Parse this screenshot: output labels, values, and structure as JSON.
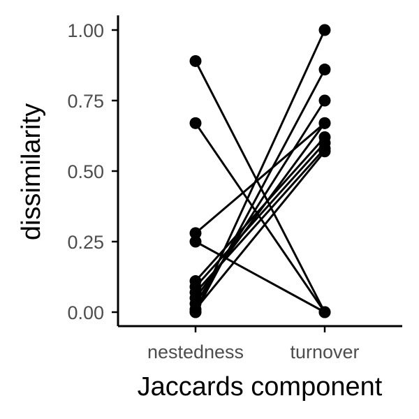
{
  "chart_data": {
    "type": "line",
    "xlabel": "Jaccards component",
    "ylabel": "dissimilarity",
    "categories": [
      "nestedness",
      "turnover"
    ],
    "ylim": [
      -0.05,
      1.05
    ],
    "yticks": [
      "0.00",
      "0.25",
      "0.50",
      "0.75",
      "1.00"
    ],
    "ytick_values": [
      0,
      0.25,
      0.5,
      0.75,
      1.0
    ],
    "grid": false,
    "legend": "none",
    "series": [
      {
        "values": [
          0.89,
          0.0
        ]
      },
      {
        "values": [
          0.67,
          0.0
        ]
      },
      {
        "values": [
          0.28,
          0.67
        ]
      },
      {
        "values": [
          0.25,
          0.0
        ]
      },
      {
        "values": [
          0.11,
          0.62
        ]
      },
      {
        "values": [
          0.09,
          0.6
        ]
      },
      {
        "values": [
          0.07,
          0.58
        ]
      },
      {
        "values": [
          0.05,
          0.67
        ]
      },
      {
        "values": [
          0.03,
          0.75
        ]
      },
      {
        "values": [
          0.01,
          0.57
        ]
      },
      {
        "values": [
          0.0,
          0.86
        ]
      },
      {
        "values": [
          0.0,
          1.0
        ]
      }
    ]
  },
  "colors": {
    "line": "#000000",
    "point": "#000000",
    "tick_label": "#4d4d4d"
  }
}
